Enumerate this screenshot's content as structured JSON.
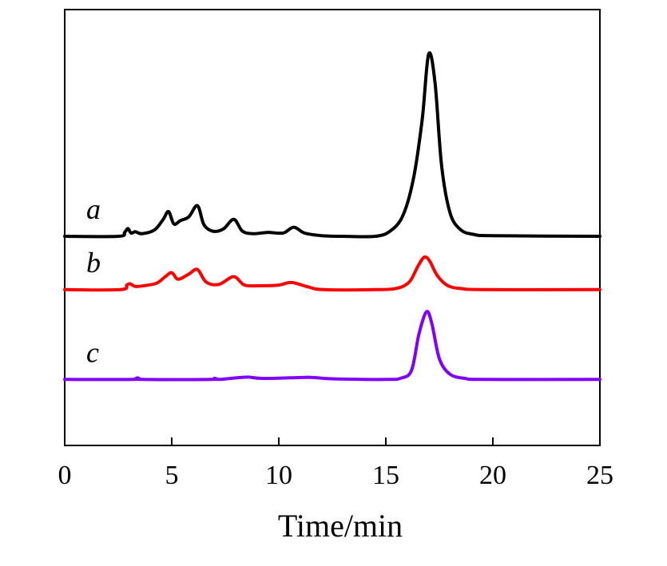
{
  "chart_data": {
    "type": "line",
    "title": "",
    "xlabel": "Time/min",
    "ylabel": "",
    "xlim": [
      0,
      25
    ],
    "xticks": [
      0,
      5,
      10,
      15,
      20,
      25
    ],
    "xtick_labels": [
      "0",
      "5",
      "10",
      "15",
      "20",
      "25"
    ],
    "y_ticks_shown": false,
    "grid": false,
    "legend": "none",
    "series": [
      {
        "name": "a",
        "color": "#000000",
        "baseline": 0,
        "x": [
          0,
          2.5,
          2.8,
          2.95,
          3.1,
          3.3,
          3.6,
          4.2,
          4.6,
          4.85,
          5.1,
          5.4,
          5.8,
          6.2,
          6.5,
          6.9,
          7.4,
          7.9,
          8.3,
          8.8,
          9.5,
          10.2,
          10.7,
          11.2,
          12,
          13,
          14.5,
          15.2,
          15.8,
          16.3,
          16.7,
          17.0,
          17.3,
          17.6,
          18.0,
          18.5,
          19.1,
          20,
          25
        ],
        "y": [
          0,
          0,
          0.3,
          0.6,
          0.25,
          0.35,
          0.2,
          0.5,
          1.3,
          1.9,
          0.95,
          1.2,
          1.5,
          2.35,
          0.9,
          0.4,
          0.55,
          1.3,
          0.4,
          0.2,
          0.3,
          0.25,
          0.7,
          0.25,
          0.05,
          0,
          0,
          0.4,
          1.6,
          4.5,
          9,
          14,
          11.8,
          5.5,
          1.8,
          0.5,
          0.15,
          0.05,
          0
        ]
      },
      {
        "name": "b",
        "color": "#ff0000",
        "baseline": -4.1,
        "x": [
          0,
          2.6,
          2.9,
          3.05,
          3.3,
          3.7,
          4.3,
          4.7,
          5.0,
          5.3,
          5.8,
          6.2,
          6.6,
          7.2,
          7.9,
          8.4,
          9.2,
          10.0,
          10.6,
          11.4,
          12.1,
          14.5,
          15.5,
          16.1,
          16.5,
          16.8,
          17.05,
          17.4,
          17.9,
          18.6,
          19.6,
          25
        ],
        "y": [
          0,
          0,
          0.35,
          0.45,
          0.25,
          0.3,
          0.5,
          1.0,
          1.3,
          0.8,
          1.2,
          1.55,
          0.6,
          0.4,
          1.0,
          0.35,
          0.3,
          0.35,
          0.55,
          0.2,
          0,
          0,
          0.1,
          0.6,
          1.8,
          2.5,
          2.2,
          1.1,
          0.3,
          0.07,
          0,
          0
        ]
      },
      {
        "name": "c",
        "color": "#7f00ff",
        "baseline": -11.0,
        "x": [
          0,
          3.2,
          3.4,
          3.6,
          6.8,
          7.0,
          7.2,
          8.2,
          8.6,
          9.2,
          10.5,
          11.5,
          12.5,
          15.0,
          15.7,
          16.2,
          16.55,
          16.9,
          17.15,
          17.5,
          18.0,
          18.7,
          19.6,
          25
        ],
        "y": [
          0,
          0,
          0.12,
          0,
          0,
          0.1,
          0,
          0.15,
          0.18,
          0.08,
          0.12,
          0.16,
          0.05,
          0,
          0.1,
          0.7,
          3.5,
          5.2,
          4.3,
          1.6,
          0.4,
          0.08,
          0,
          0
        ]
      }
    ]
  }
}
